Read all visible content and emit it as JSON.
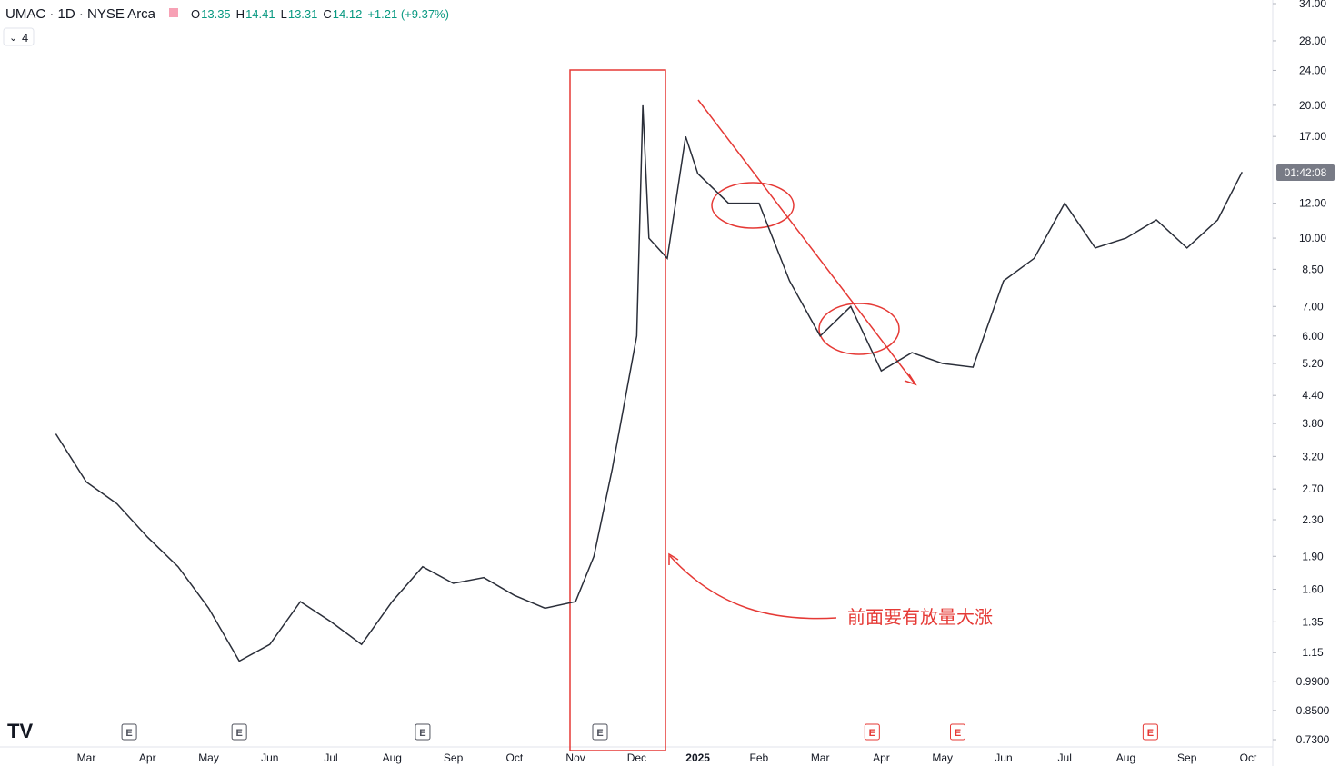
{
  "header": {
    "symbol": "UMAC · 1D · NYSE Arca",
    "ohlc": [
      {
        "key": "O",
        "value": "13.35"
      },
      {
        "key": "H",
        "value": "14.41"
      },
      {
        "key": "L",
        "value": "13.31"
      },
      {
        "key": "C",
        "value": "14.12"
      }
    ],
    "change": "+1.21 (+9.37%)",
    "indicators": "4"
  },
  "countdown": "01:42:08",
  "annotation": "前面要有放量大涨",
  "chart_data": {
    "type": "line",
    "log_scale": true,
    "color": "#2a2e39",
    "categories": [
      "Mar",
      "Apr",
      "May",
      "Jun",
      "Jul",
      "Aug",
      "Sep",
      "Oct",
      "Nov",
      "Dec",
      "2025",
      "Feb",
      "Mar",
      "Apr",
      "May",
      "Jun",
      "Jul",
      "Aug",
      "Sep",
      "Oct"
    ],
    "x": [
      -0.5,
      0,
      0.5,
      1,
      1.5,
      2,
      2.5,
      3,
      3.5,
      4,
      4.5,
      5,
      5.5,
      6,
      6.5,
      7,
      7.5,
      8,
      8.3,
      8.6,
      9,
      9.1,
      9.2,
      9.5,
      9.8,
      10,
      10.5,
      11,
      11.5,
      12,
      12.5,
      13,
      13.5,
      14,
      14.5,
      15,
      15.5,
      16,
      16.5,
      17,
      17.5,
      18,
      18.5,
      18.9
    ],
    "values": [
      3.6,
      2.8,
      2.5,
      2.1,
      1.8,
      1.45,
      1.1,
      1.2,
      1.5,
      1.35,
      1.2,
      1.5,
      1.8,
      1.65,
      1.7,
      1.55,
      1.45,
      1.5,
      1.9,
      3.0,
      6.0,
      20,
      10,
      9,
      17,
      14,
      12,
      12,
      8,
      6,
      7,
      5,
      5.5,
      5.2,
      5.1,
      8,
      9,
      12,
      9.5,
      10,
      11,
      9.5,
      11,
      14.12
    ],
    "xlim": [
      -0.53,
      19
    ],
    "ylim": [
      0.73,
      34
    ],
    "yticks": [
      {
        "value": 34,
        "label": "34.00"
      },
      {
        "value": 28,
        "label": "28.00"
      },
      {
        "value": 24,
        "label": "24.00"
      },
      {
        "value": 20,
        "label": "20.00"
      },
      {
        "value": 17,
        "label": "17.00"
      },
      {
        "value": 12,
        "label": "12.00"
      },
      {
        "value": 10,
        "label": "10.00"
      },
      {
        "value": 8.5,
        "label": "8.50"
      },
      {
        "value": 7,
        "label": "7.00"
      },
      {
        "value": 6,
        "label": "6.00"
      },
      {
        "value": 5.2,
        "label": "5.20"
      },
      {
        "value": 4.4,
        "label": "4.40"
      },
      {
        "value": 3.8,
        "label": "3.80"
      },
      {
        "value": 3.2,
        "label": "3.20"
      },
      {
        "value": 2.7,
        "label": "2.70"
      },
      {
        "value": 2.3,
        "label": "2.30"
      },
      {
        "value": 1.9,
        "label": "1.90"
      },
      {
        "value": 1.6,
        "label": "1.60"
      },
      {
        "value": 1.35,
        "label": "1.35"
      },
      {
        "value": 1.15,
        "label": "1.15"
      },
      {
        "value": 0.99,
        "label": "0.9900"
      },
      {
        "value": 0.85,
        "label": "0.8500"
      },
      {
        "value": 0.73,
        "label": "0.7300"
      }
    ],
    "earnings": [
      {
        "label": "E",
        "x": 0.7
      },
      {
        "label": "E",
        "x": 2.5
      },
      {
        "label": "E",
        "x": 5.5
      },
      {
        "label": "E",
        "x": 8.4
      },
      {
        "label": "E",
        "x": 12.85
      },
      {
        "label": "E",
        "x": 14.25
      },
      {
        "label": "E",
        "x": 17.4
      }
    ]
  }
}
